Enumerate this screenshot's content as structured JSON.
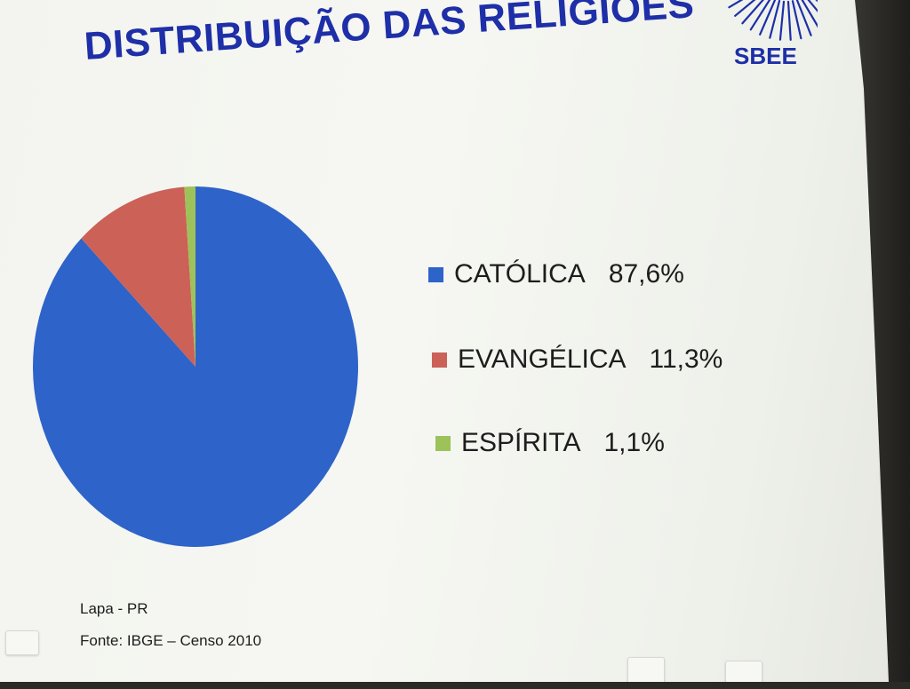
{
  "slide": {
    "title": "DISTRIBUIÇÃO DAS RELIGIÕES",
    "logo_text": "SBEE",
    "location": "Lapa - PR",
    "source": "Fonte: IBGE – Censo 2010"
  },
  "chart_data": {
    "type": "pie",
    "title": "DISTRIBUIÇÃO DAS RELIGIÕES",
    "categories": [
      "CATÓLICA",
      "EVANGÉLICA",
      "ESPÍRITA"
    ],
    "values": [
      87.6,
      11.3,
      1.1
    ],
    "value_labels": [
      "87,6%",
      "11,3%",
      "1,1%"
    ],
    "colors": [
      "#2e63c9",
      "#cc6158",
      "#9dc25a"
    ],
    "legend_position": "right"
  },
  "icons": {
    "logo": "sunburst-icon",
    "nav_prev": "slide-nav-button",
    "nav_next": "slide-nav-button"
  }
}
